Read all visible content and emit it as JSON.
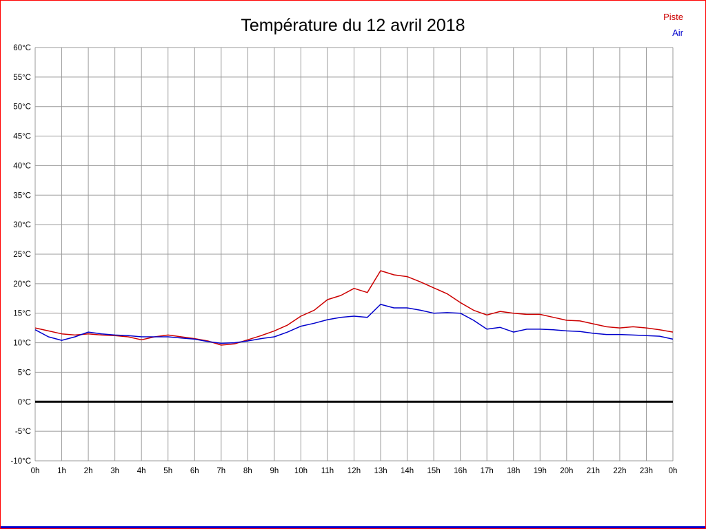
{
  "chart_data": {
    "type": "line",
    "title": "Température du 12 avril 2018",
    "xlabel": "",
    "ylabel": "",
    "ylim": [
      -10,
      60
    ],
    "y_tick_step": 5,
    "y_tick_suffix": "°C",
    "grid": true,
    "zero_line_at": 0,
    "legend_position": "top-right",
    "x_tick_labels": [
      "0h",
      "1h",
      "2h",
      "3h",
      "4h",
      "5h",
      "6h",
      "7h",
      "8h",
      "9h",
      "10h",
      "11h",
      "12h",
      "13h",
      "14h",
      "15h",
      "16h",
      "17h",
      "18h",
      "19h",
      "20h",
      "21h",
      "22h",
      "23h",
      "0h"
    ],
    "x": [
      0,
      0.5,
      1,
      1.5,
      2,
      2.5,
      3,
      3.5,
      4,
      4.5,
      5,
      5.5,
      6,
      6.5,
      7,
      7.5,
      8,
      8.5,
      9,
      9.5,
      10,
      10.5,
      11,
      11.5,
      12,
      12.5,
      13,
      13.5,
      14,
      14.5,
      15,
      15.5,
      16,
      16.5,
      17,
      17.5,
      18,
      18.5,
      19,
      19.5,
      20,
      20.5,
      21,
      21.5,
      22,
      22.5,
      23,
      23.5,
      24
    ],
    "series": [
      {
        "name": "Piste",
        "color": "#cc0000",
        "values": [
          12.5,
          12,
          11.5,
          11.3,
          11.5,
          11.3,
          11.2,
          11,
          10.5,
          11,
          11.3,
          11,
          10.7,
          10.3,
          9.6,
          9.8,
          10.5,
          11.2,
          12,
          13,
          14.5,
          15.5,
          17.3,
          18,
          19.2,
          18.5,
          22.2,
          21.5,
          21.2,
          20.3,
          19.3,
          18.3,
          16.8,
          15.5,
          14.7,
          15.3,
          15,
          14.8,
          14.8,
          14.3,
          13.8,
          13.7,
          13.2,
          12.7,
          12.5,
          12.7,
          12.5,
          12.2,
          11.8
        ]
      },
      {
        "name": "Air",
        "color": "#0000cc",
        "values": [
          12.2,
          11,
          10.4,
          11,
          11.8,
          11.5,
          11.3,
          11.2,
          11,
          11,
          11,
          10.8,
          10.6,
          10.2,
          9.9,
          10,
          10.3,
          10.7,
          11,
          11.8,
          12.8,
          13.3,
          13.9,
          14.3,
          14.5,
          14.3,
          16.5,
          15.9,
          15.9,
          15.5,
          15,
          15.1,
          15,
          13.8,
          12.3,
          12.6,
          11.8,
          12.3,
          12.3,
          12.2,
          12,
          11.9,
          11.6,
          11.4,
          11.4,
          11.3,
          11.2,
          11.1,
          10.6
        ]
      }
    ],
    "colors": {
      "grid": "#999999",
      "zero_line": "#000000",
      "axis_text": "#000000"
    }
  },
  "frame": {
    "border_color": "#ff0000",
    "bottom_bar_color": "#0000cc"
  }
}
